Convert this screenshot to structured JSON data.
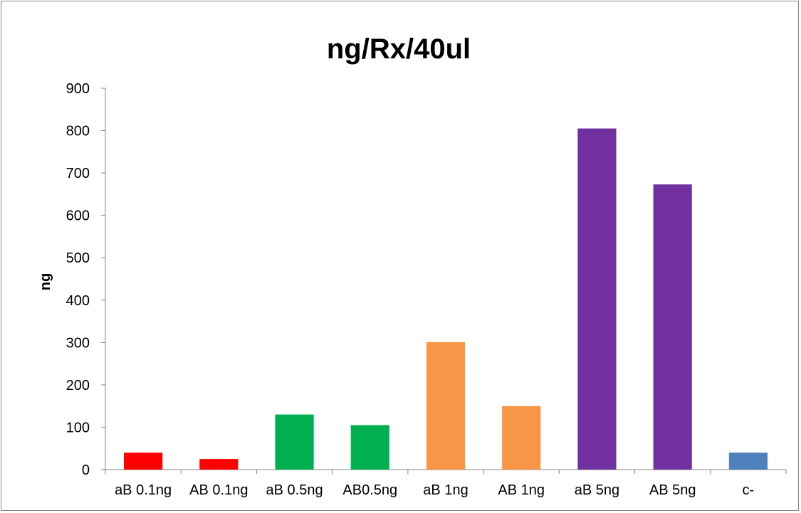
{
  "chart_data": {
    "type": "bar",
    "title": "ng/Rx/40ul",
    "xlabel": "",
    "ylabel": "ng",
    "categories": [
      "aB 0.1ng",
      "AB 0.1ng",
      "aB 0.5ng",
      "AB0.5ng",
      "aB 1ng",
      "AB 1ng",
      "aB 5ng",
      "AB 5ng",
      "c-"
    ],
    "values": [
      40,
      25,
      130,
      105,
      301,
      150,
      805,
      673,
      40
    ],
    "colors": [
      "#ff0000",
      "#ff0000",
      "#00b050",
      "#00b050",
      "#f79646",
      "#f79646",
      "#7030a0",
      "#7030a0",
      "#4f81bd"
    ],
    "ylim": [
      0,
      900
    ],
    "yticks": [
      0,
      100,
      200,
      300,
      400,
      500,
      600,
      700,
      800,
      900
    ],
    "grid": false,
    "legend": "none"
  }
}
